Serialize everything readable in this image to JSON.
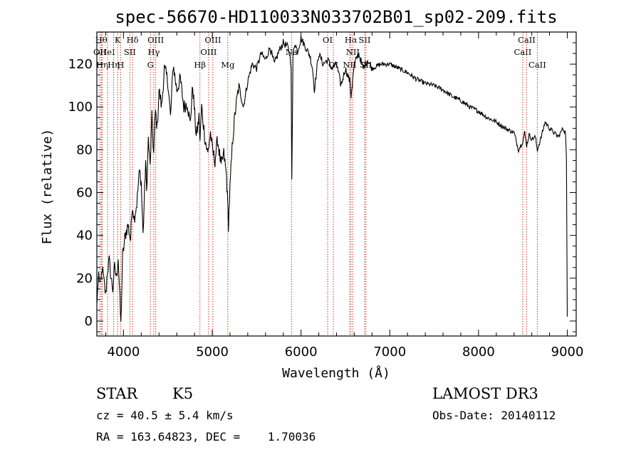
{
  "chart_data": {
    "type": "line",
    "title": "spec-56670-HD110033N033702B01_sp02-209.fits",
    "xlabel": "Wavelength (Å)",
    "ylabel": "Flux (relative)",
    "xlim": [
      3700,
      9100
    ],
    "ylim": [
      -7,
      135
    ],
    "xticks": [
      4000,
      5000,
      6000,
      7000,
      8000,
      9000
    ],
    "yticks": [
      0,
      20,
      40,
      60,
      80,
      100,
      120
    ],
    "grid": false,
    "line_color": "#000000",
    "marker_color": "#c0392b",
    "spectrum": {
      "x": [
        3700,
        3720,
        3740,
        3760,
        3780,
        3800,
        3820,
        3840,
        3860,
        3880,
        3900,
        3920,
        3940,
        3960,
        3970,
        3990,
        4020,
        4050,
        4080,
        4100,
        4120,
        4150,
        4180,
        4200,
        4220,
        4250,
        4260,
        4280,
        4300,
        4320,
        4340,
        4360,
        4380,
        4400,
        4430,
        4460,
        4500,
        4530,
        4560,
        4600,
        4640,
        4680,
        4720,
        4750,
        4780,
        4820,
        4850,
        4862,
        4880,
        4900,
        4920,
        4950,
        4980,
        5000,
        5030,
        5060,
        5100,
        5130,
        5160,
        5170,
        5183,
        5200,
        5230,
        5260,
        5300,
        5350,
        5400,
        5450,
        5500,
        5550,
        5600,
        5650,
        5700,
        5750,
        5800,
        5850,
        5870,
        5888,
        5896,
        5910,
        5930,
        5960,
        6000,
        6050,
        6100,
        6130,
        6150,
        6200,
        6250,
        6300,
        6350,
        6400,
        6450,
        6500,
        6550,
        6563,
        6600,
        6650,
        6700,
        6750,
        6800,
        6900,
        7000,
        7100,
        7200,
        7300,
        7400,
        7500,
        7600,
        7700,
        7800,
        7900,
        8000,
        8100,
        8200,
        8300,
        8400,
        8450,
        8498,
        8520,
        8542,
        8570,
        8600,
        8640,
        8662,
        8700,
        8750,
        8800,
        8850,
        8900,
        8950,
        8980,
        8990,
        9000
      ],
      "y": [
        8,
        22,
        15,
        25,
        18,
        12,
        24,
        28,
        20,
        15,
        25,
        20,
        30,
        10,
        -2,
        30,
        40,
        45,
        38,
        55,
        48,
        55,
        70,
        65,
        40,
        75,
        60,
        85,
        72,
        95,
        78,
        98,
        90,
        108,
        100,
        118,
        112,
        95,
        120,
        108,
        113,
        100,
        102,
        92,
        110,
        86,
        95,
        84,
        100,
        92,
        85,
        78,
        88,
        80,
        75,
        85,
        72,
        78,
        68,
        58,
        45,
        62,
        85,
        98,
        110,
        100,
        112,
        120,
        118,
        125,
        122,
        128,
        120,
        126,
        130,
        128,
        125,
        120,
        65,
        125,
        130,
        126,
        132,
        128,
        124,
        118,
        108,
        125,
        120,
        122,
        118,
        120,
        110,
        118,
        112,
        105,
        120,
        125,
        118,
        122,
        118,
        120,
        120,
        118,
        116,
        113,
        111,
        110,
        108,
        105,
        103,
        100,
        98,
        95,
        93,
        90,
        88,
        80,
        84,
        88,
        82,
        87,
        85,
        86,
        80,
        85,
        93,
        90,
        88,
        86,
        90,
        88,
        76,
        2
      ],
      "sparse_dips": [
        3970,
        4227,
        5183,
        5890,
        8498,
        8542,
        8662
      ]
    },
    "lines": [
      {
        "wl": 3750,
        "label": "Hθ",
        "row": 0
      },
      {
        "wl": 3734,
        "label": "OII",
        "row": 1
      },
      {
        "wl": 3760,
        "label": "Hη",
        "row": 2
      },
      {
        "wl": 3820,
        "label": "HeI",
        "row": 1
      },
      {
        "wl": 3889,
        "label": "Hη",
        "row": 2
      },
      {
        "wl": 3934,
        "label": "K",
        "row": 0
      },
      {
        "wl": 3968,
        "label": "H",
        "row": 2
      },
      {
        "wl": 4072,
        "label": "SII",
        "row": 1
      },
      {
        "wl": 4102,
        "label": "Hδ",
        "row": 0
      },
      {
        "wl": 4304,
        "label": "G",
        "row": 2
      },
      {
        "wl": 4341,
        "label": "Hγ",
        "row": 1
      },
      {
        "wl": 4363,
        "label": "OIII",
        "row": 0
      },
      {
        "wl": 4861,
        "label": "Hβ",
        "row": 2
      },
      {
        "wl": 4959,
        "label": "OIII",
        "row": 1
      },
      {
        "wl": 5007,
        "label": "OIII",
        "row": 0
      },
      {
        "wl": 5175,
        "label": "Mg",
        "row": 2
      },
      {
        "wl": 5893,
        "label": "Na",
        "row": 1
      },
      {
        "wl": 6300,
        "label": "OI",
        "row": 0
      },
      {
        "wl": 6364,
        "label": "OI",
        "row": 2
      },
      {
        "wl": 6548,
        "label": "NII",
        "row": 2
      },
      {
        "wl": 6563,
        "label": "Hα",
        "row": 0
      },
      {
        "wl": 6584,
        "label": "NII",
        "row": 1
      },
      {
        "wl": 6717,
        "label": "SII",
        "row": 0
      },
      {
        "wl": 6731,
        "label": "SII",
        "row": 2
      },
      {
        "wl": 8498,
        "label": "CaII",
        "row": 1
      },
      {
        "wl": 8542,
        "label": "CaII",
        "row": 0
      },
      {
        "wl": 8662,
        "label": "CaII",
        "row": 2
      }
    ]
  },
  "info": {
    "class_label": "STAR",
    "subclass_label": "K5",
    "survey_label": "LAMOST DR3",
    "cz_text": "cz = 40.5 ± 5.4 km/s",
    "obs_date_text": "Obs-Date: 20140112",
    "radec_text": "RA = 163.64823, DEC =    1.70036"
  }
}
